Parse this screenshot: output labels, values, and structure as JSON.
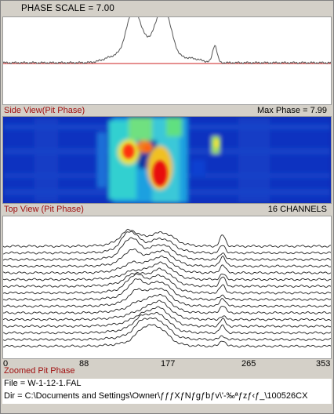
{
  "header": {
    "phase_scale_text": "PHASE SCALE =  7.00"
  },
  "side_view": {
    "title": "Side View(Pit Phase)",
    "max_phase_text": "Max Phase = 7.99",
    "trace_color": "#555555",
    "baseline_color": "#cc2222"
  },
  "top_view": {
    "title": "Top View (Pit Phase)",
    "channels_text": "16 CHANNELS",
    "colormap": "jet"
  },
  "zoomed": {
    "title": "Zoomed Pit Phase",
    "x_ticks": [
      "0",
      "88",
      "177",
      "265",
      "353"
    ],
    "channel_count": 16
  },
  "status": {
    "file_text": "File = W-1-12-1.FAL",
    "dir_text": "Dir = C:\\Documents and Settings\\Owner\\ƒƒƒXƒNƒgƒbƒv\\'-‰ªƒzƒ‹ƒ_\\100526CX"
  }
}
